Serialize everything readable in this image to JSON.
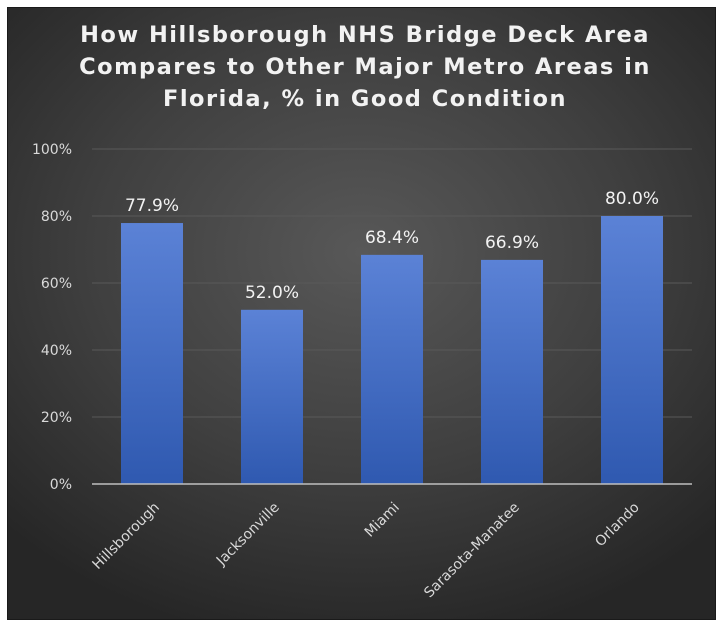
{
  "chart_data": {
    "type": "bar",
    "title": "How Hillsborough NHS Bridge Deck Area Compares to Other Major Metro Areas in Florida, % in Good Condition",
    "categories": [
      "Hillsborough",
      "Jacksonville",
      "Miami",
      "Sarasota-Manatee",
      "Orlando"
    ],
    "values": [
      77.9,
      52.0,
      68.4,
      66.9,
      80.0
    ],
    "data_labels": [
      "77.9%",
      "52.0%",
      "68.4%",
      "66.9%",
      "80.0%"
    ],
    "xlabel": "",
    "ylabel": "",
    "ylim": [
      0,
      100
    ],
    "yticks": [
      0,
      20,
      40,
      60,
      80,
      100
    ],
    "ytick_labels": [
      "0%",
      "20%",
      "40%",
      "60%",
      "80%",
      "100%"
    ],
    "grid": true,
    "legend": "none",
    "colors": {
      "bar_top": "#5b82d6",
      "bar_bottom": "#2f59b0",
      "background": "#404040",
      "gridline": "#595959",
      "axis": "#bfbfbf",
      "text": "#f2f2f2"
    }
  }
}
